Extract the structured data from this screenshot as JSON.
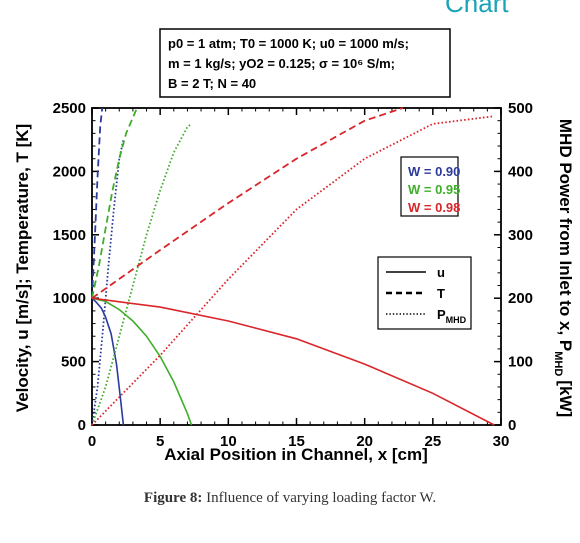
{
  "header_fragment": "Chart",
  "caption": {
    "label": "Figure 8:",
    "text": "Influence of varying loading factor W."
  },
  "chart_data": {
    "type": "line",
    "xlabel": "Axial Position in Channel, x [cm]",
    "ylabel_left": "Velocity, u [m/s]; Temperature, T [K]",
    "ylabel_right": "MHD Power from Inlet to x, P",
    "ylabel_right_sub": "MHD",
    "ylabel_right_unit": "[kW]",
    "xlim": [
      0,
      30
    ],
    "ylim_left": [
      0,
      2500
    ],
    "ylim_right": [
      0,
      500
    ],
    "x_ticks": [
      "0",
      "5",
      "10",
      "15",
      "20",
      "25",
      "30"
    ],
    "y_left_ticks": [
      "0",
      "500",
      "1000",
      "1500",
      "2000",
      "2500"
    ],
    "y_right_ticks": [
      "0",
      "100",
      "200",
      "300",
      "400",
      "500"
    ],
    "conditions": {
      "line1": "p0 = 1 atm; T0 = 1000 K; u0 = 1000 m/s;",
      "line2": "m = 1 kg/s; yO2 = 0.125; σ = 10⁶ S/m;",
      "line3": "B = 2 T; N = 40"
    },
    "loading_legend": [
      {
        "label": "W = 0.90",
        "color": "#2b3a9b"
      },
      {
        "label": "W = 0.95",
        "color": "#3fae2a"
      },
      {
        "label": "W = 0.98",
        "color": "#d9262b"
      }
    ],
    "style_legend": [
      {
        "label": "u",
        "dash": "solid"
      },
      {
        "label": "T",
        "dash": "dashed"
      },
      {
        "label": "P",
        "sub": "MHD",
        "dash": "dotted"
      }
    ],
    "series": [
      {
        "name": "W = 0.90",
        "quantity": "u",
        "axis": "left",
        "color": "#2b3a9b",
        "dash": "solid",
        "x": [
          0,
          0.3,
          0.7,
          1.0,
          1.4,
          1.8,
          2.1,
          2.3
        ],
        "y": [
          1000,
          970,
          920,
          850,
          720,
          480,
          200,
          0
        ]
      },
      {
        "name": "W = 0.90",
        "quantity": "T",
        "axis": "left",
        "color": "#2b3a9b",
        "dash": "dashed",
        "x": [
          0,
          0.2,
          0.4,
          0.6,
          0.75
        ],
        "y": [
          1000,
          1450,
          1950,
          2350,
          2500
        ]
      },
      {
        "name": "W = 0.90",
        "quantity": "P",
        "axis": "right",
        "color": "#2b3a9b",
        "dash": "dotted",
        "x": [
          0,
          0.4,
          0.8,
          1.2,
          1.6,
          2.0,
          2.3
        ],
        "y": [
          0,
          60,
          150,
          250,
          340,
          420,
          450
        ]
      },
      {
        "name": "W = 0.95",
        "quantity": "u",
        "axis": "left",
        "color": "#3fae2a",
        "dash": "solid",
        "x": [
          0,
          1,
          2,
          3,
          4,
          5,
          6,
          7,
          7.3
        ],
        "y": [
          1000,
          975,
          910,
          820,
          700,
          540,
          340,
          90,
          0
        ]
      },
      {
        "name": "W = 0.95",
        "quantity": "T",
        "axis": "left",
        "color": "#3fae2a",
        "dash": "dashed",
        "x": [
          0,
          0.5,
          1.0,
          1.5,
          2.0,
          2.5,
          3.3
        ],
        "y": [
          1000,
          1250,
          1550,
          1850,
          2100,
          2300,
          2500
        ]
      },
      {
        "name": "W = 0.95",
        "quantity": "P",
        "axis": "right",
        "color": "#3fae2a",
        "dash": "dotted",
        "x": [
          0,
          1,
          2,
          3,
          4,
          5,
          6,
          7,
          7.3
        ],
        "y": [
          0,
          60,
          140,
          220,
          300,
          370,
          430,
          470,
          475
        ]
      },
      {
        "name": "W = 0.98",
        "quantity": "u",
        "axis": "left",
        "color": "#d9262b",
        "dash": "solid",
        "x": [
          0,
          5,
          10,
          15,
          20,
          25,
          29.5
        ],
        "y": [
          1000,
          930,
          820,
          680,
          480,
          250,
          0
        ]
      },
      {
        "name": "W = 0.98",
        "quantity": "T",
        "axis": "left",
        "color": "#d9262b",
        "dash": "dashed",
        "x": [
          0,
          5,
          10,
          15,
          20,
          22.8
        ],
        "y": [
          1000,
          1380,
          1750,
          2100,
          2400,
          2500
        ]
      },
      {
        "name": "W = 0.98",
        "quantity": "P",
        "axis": "right",
        "color": "#d9262b",
        "dash": "dotted",
        "x": [
          0,
          5,
          10,
          15,
          20,
          25,
          29.5
        ],
        "y": [
          0,
          110,
          230,
          340,
          420,
          475,
          487
        ]
      }
    ]
  }
}
